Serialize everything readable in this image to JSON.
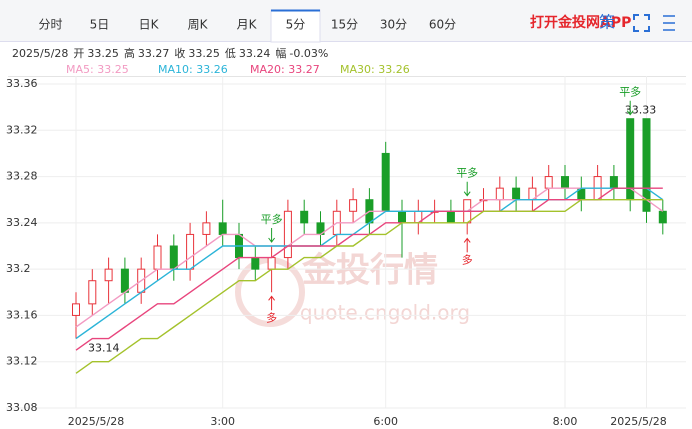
{
  "tabs": {
    "items": [
      "分时",
      "5日",
      "日K",
      "周K",
      "月K",
      "5分",
      "15分",
      "30分",
      "60分"
    ],
    "active": "5分"
  },
  "app_link": "打开金投网APP",
  "strategy_icon": "策",
  "info": {
    "date": "2025/5/28",
    "fields": [
      {
        "label": "开",
        "value": "33.25"
      },
      {
        "label": "高",
        "value": "33.27"
      },
      {
        "label": "收",
        "value": "33.25"
      },
      {
        "label": "低",
        "value": "33.24"
      },
      {
        "label": "幅",
        "value": "-0.03%"
      }
    ]
  },
  "watermark": {
    "title": "金投行情",
    "url": "quote.cngold.org"
  },
  "chart_data": {
    "type": "candlestick",
    "up_color": "#e8333a",
    "down_color": "#1a9e28",
    "ohlc": [
      [
        33.16,
        33.18,
        33.14,
        33.17
      ],
      [
        33.17,
        33.2,
        33.16,
        33.19
      ],
      [
        33.19,
        33.21,
        33.17,
        33.2
      ],
      [
        33.2,
        33.21,
        33.17,
        33.18
      ],
      [
        33.18,
        33.21,
        33.17,
        33.2
      ],
      [
        33.2,
        33.23,
        33.19,
        33.22
      ],
      [
        33.22,
        33.23,
        33.19,
        33.2
      ],
      [
        33.2,
        33.24,
        33.19,
        33.23
      ],
      [
        33.23,
        33.25,
        33.22,
        33.24
      ],
      [
        33.24,
        33.26,
        33.22,
        33.23
      ],
      [
        33.23,
        33.24,
        33.2,
        33.21
      ],
      [
        33.21,
        33.22,
        33.19,
        33.2
      ],
      [
        33.2,
        33.22,
        33.18,
        33.21
      ],
      [
        33.21,
        33.26,
        33.2,
        33.25
      ],
      [
        33.25,
        33.26,
        33.23,
        33.24
      ],
      [
        33.24,
        33.25,
        33.22,
        33.23
      ],
      [
        33.23,
        33.26,
        33.22,
        33.25
      ],
      [
        33.25,
        33.27,
        33.24,
        33.26
      ],
      [
        33.26,
        33.27,
        33.23,
        33.24
      ],
      [
        33.3,
        33.31,
        33.25,
        33.25
      ],
      [
        33.25,
        33.26,
        33.21,
        33.24
      ],
      [
        33.24,
        33.26,
        33.23,
        33.25
      ],
      [
        33.25,
        33.26,
        33.24,
        33.25
      ],
      [
        33.25,
        33.26,
        33.24,
        33.24
      ],
      [
        33.24,
        33.26,
        33.23,
        33.26
      ],
      [
        33.26,
        33.27,
        33.25,
        33.26
      ],
      [
        33.26,
        33.28,
        33.25,
        33.27
      ],
      [
        33.27,
        33.28,
        33.25,
        33.26
      ],
      [
        33.26,
        33.28,
        33.25,
        33.27
      ],
      [
        33.27,
        33.29,
        33.26,
        33.28
      ],
      [
        33.28,
        33.29,
        33.26,
        33.27
      ],
      [
        33.27,
        33.28,
        33.25,
        33.26
      ],
      [
        33.26,
        33.29,
        33.26,
        33.28
      ],
      [
        33.28,
        33.29,
        33.26,
        33.27
      ],
      [
        33.33,
        33.33,
        33.25,
        33.26
      ],
      [
        33.33,
        33.33,
        33.24,
        33.25
      ],
      [
        33.25,
        33.26,
        33.23,
        33.24
      ]
    ],
    "series": [
      {
        "name": "MA5: 33.25",
        "color": "#f29ac2",
        "values": [
          33.15,
          33.16,
          33.17,
          33.18,
          33.19,
          33.2,
          33.2,
          33.21,
          33.22,
          33.23,
          33.23,
          33.22,
          33.22,
          33.22,
          33.23,
          33.23,
          33.24,
          33.24,
          33.25,
          33.25,
          33.25,
          33.25,
          33.25,
          33.25,
          33.25,
          33.26,
          33.26,
          33.26,
          33.26,
          33.27,
          33.27,
          33.27,
          33.27,
          33.27,
          33.27,
          33.26,
          33.25
        ]
      },
      {
        "name": "MA10: 33.26",
        "color": "#2bb4d8",
        "values": [
          33.14,
          33.15,
          33.16,
          33.17,
          33.18,
          33.19,
          33.2,
          33.2,
          33.21,
          33.22,
          33.22,
          33.22,
          33.22,
          33.22,
          33.22,
          33.22,
          33.23,
          33.23,
          33.24,
          33.25,
          33.25,
          33.25,
          33.25,
          33.25,
          33.25,
          33.25,
          33.25,
          33.26,
          33.26,
          33.26,
          33.26,
          33.27,
          33.27,
          33.27,
          33.27,
          33.27,
          33.26
        ]
      },
      {
        "name": "MA20: 33.27",
        "color": "#e8457d",
        "values": [
          33.13,
          33.14,
          33.14,
          33.15,
          33.16,
          33.17,
          33.17,
          33.18,
          33.19,
          33.2,
          33.21,
          33.21,
          33.21,
          33.22,
          33.22,
          33.22,
          33.22,
          33.23,
          33.23,
          33.24,
          33.24,
          33.24,
          33.25,
          33.25,
          33.25,
          33.25,
          33.25,
          33.25,
          33.25,
          33.26,
          33.26,
          33.26,
          33.26,
          33.27,
          33.27,
          33.27,
          33.27
        ]
      },
      {
        "name": "MA30: 33.26",
        "color": "#a4c22c",
        "values": [
          33.11,
          33.12,
          33.12,
          33.13,
          33.14,
          33.14,
          33.15,
          33.16,
          33.17,
          33.18,
          33.19,
          33.19,
          33.2,
          33.2,
          33.21,
          33.21,
          33.22,
          33.22,
          33.23,
          33.23,
          33.24,
          33.24,
          33.24,
          33.24,
          33.24,
          33.25,
          33.25,
          33.25,
          33.25,
          33.25,
          33.25,
          33.26,
          33.26,
          33.26,
          33.26,
          33.26,
          33.26
        ]
      }
    ],
    "ylim": [
      33.08,
      33.36
    ],
    "yticks": [
      33.08,
      33.12,
      33.16,
      33.2,
      33.24,
      33.28,
      33.32,
      33.36
    ],
    "xticks": [
      {
        "value": 0,
        "label": "2025/5/28"
      },
      {
        "value": 9,
        "label": "3:00"
      },
      {
        "value": 19,
        "label": "6:00"
      },
      {
        "value": 30,
        "label": "8:00"
      },
      {
        "value": 35,
        "label": "2025/5/28"
      }
    ],
    "high_label": 33.33,
    "low_label": 33.14,
    "signals": [
      "平多",
      "多",
      "平多",
      "多",
      "平多"
    ],
    "grid": true
  }
}
